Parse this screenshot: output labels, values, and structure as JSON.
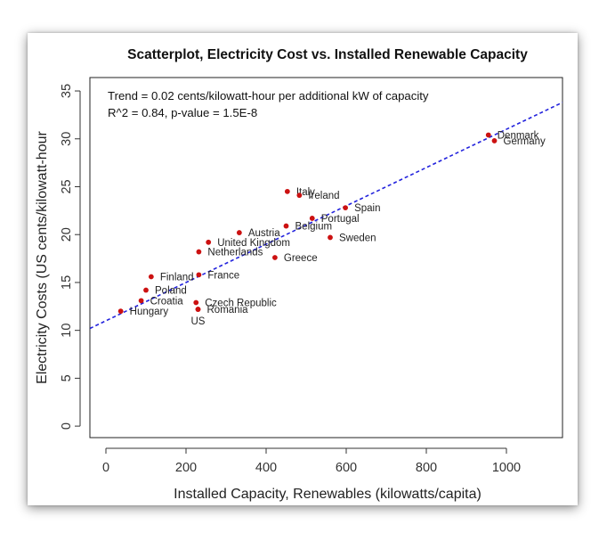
{
  "chart_data": {
    "type": "scatter",
    "title": "Scatterplot, Electricity Cost vs. Installed Renewable Capacity",
    "xlabel": "Installed Capacity, Renewables (kilowatts/capita)",
    "ylabel": "Electricity Costs (US cents/kilowatt-hour",
    "xlim": [
      -40,
      1140
    ],
    "ylim": [
      -1.2,
      36.4
    ],
    "xticks": [
      0,
      200,
      400,
      600,
      800,
      1000
    ],
    "yticks": [
      0,
      5,
      10,
      15,
      20,
      25,
      30,
      35
    ],
    "xtick_labels": [
      "0",
      "200",
      "400",
      "600",
      "800",
      "1000"
    ],
    "ytick_labels": [
      "0",
      "5",
      "10",
      "15",
      "20",
      "25",
      "30",
      "35"
    ],
    "annotations": [
      "Trend = 0.02 cents/kilowatt-hour per additional kW of capacity",
      "R^2 = 0.84, p-value = 1.5E-8"
    ],
    "trend": {
      "intercept": 11.0,
      "slope": 0.02,
      "color": "#2222dd",
      "style": "dashed"
    },
    "point_color": "#cc1111",
    "points": [
      {
        "name": "Denmark",
        "x": 955,
        "y": 30.4
      },
      {
        "name": "Germany",
        "x": 970,
        "y": 29.8
      },
      {
        "name": "Italy",
        "x": 453,
        "y": 24.5
      },
      {
        "name": "Ireland",
        "x": 483,
        "y": 24.1
      },
      {
        "name": "Spain",
        "x": 598,
        "y": 22.8
      },
      {
        "name": "Portugal",
        "x": 515,
        "y": 21.7
      },
      {
        "name": "Belgium",
        "x": 450,
        "y": 20.9
      },
      {
        "name": "Austria",
        "x": 333,
        "y": 20.2
      },
      {
        "name": "Sweden",
        "x": 560,
        "y": 19.7
      },
      {
        "name": "United Kingdom",
        "x": 256,
        "y": 19.2
      },
      {
        "name": "Netherlands",
        "x": 232,
        "y": 18.2
      },
      {
        "name": "Greece",
        "x": 422,
        "y": 17.6
      },
      {
        "name": "France",
        "x": 232,
        "y": 15.8
      },
      {
        "name": "Finland",
        "x": 113,
        "y": 15.6
      },
      {
        "name": "Poland",
        "x": 100,
        "y": 14.2
      },
      {
        "name": "Croatia",
        "x": 88,
        "y": 13.1
      },
      {
        "name": "Czech Republic",
        "x": 225,
        "y": 12.9
      },
      {
        "name": "Romania",
        "x": 230,
        "y": 12.2
      },
      {
        "name": "Hungary",
        "x": 37,
        "y": 12.0
      },
      {
        "name": "US",
        "x": 230,
        "y": 12.2
      }
    ]
  }
}
